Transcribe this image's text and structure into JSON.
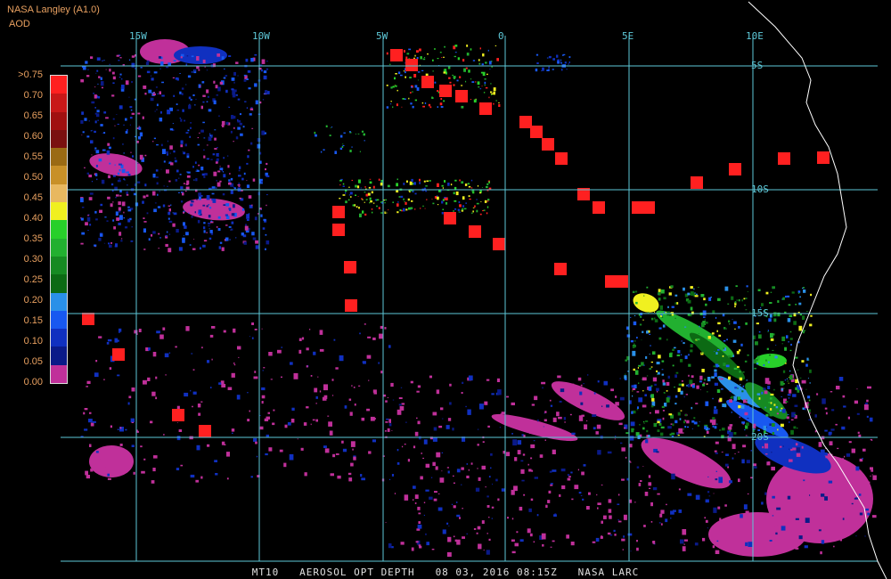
{
  "header": {
    "title": "NASA Langley (A1.0)",
    "unit": "AOD"
  },
  "legend": {
    "labels": [
      ">0.75",
      "0.70",
      "0.65",
      "0.60",
      "0.55",
      "0.50",
      "0.45",
      "0.40",
      "0.35",
      "0.30",
      "0.25",
      "0.20",
      "0.15",
      "0.10",
      "0.05",
      "0.00"
    ],
    "colors": [
      "#c0309a",
      "#0a1a88",
      "#1030c0",
      "#1858f0",
      "#2a90e8",
      "#0c6a14",
      "#168a22",
      "#22b030",
      "#28d02a",
      "#f0f020",
      "#e8b860",
      "#c89028",
      "#9a6a14",
      "#7a1010",
      "#a01010",
      "#c81818",
      "#ff2020"
    ]
  },
  "grid": {
    "lon_labels": [
      "15W",
      "10W",
      "5W",
      "0",
      "5E",
      "10E"
    ],
    "lat_labels": [
      "5S",
      "10S",
      "15S",
      "20S"
    ]
  },
  "footer": {
    "product": "MT10",
    "title": "AEROSOL OPT DEPTH",
    "datetime": "08 03, 2016 08:15Z",
    "source": "NASA LARC"
  },
  "colors": {
    "grid": "#5ec8d8",
    "coast": "#ffffff",
    "header_text": "#e8a060",
    "background": "#000000"
  }
}
